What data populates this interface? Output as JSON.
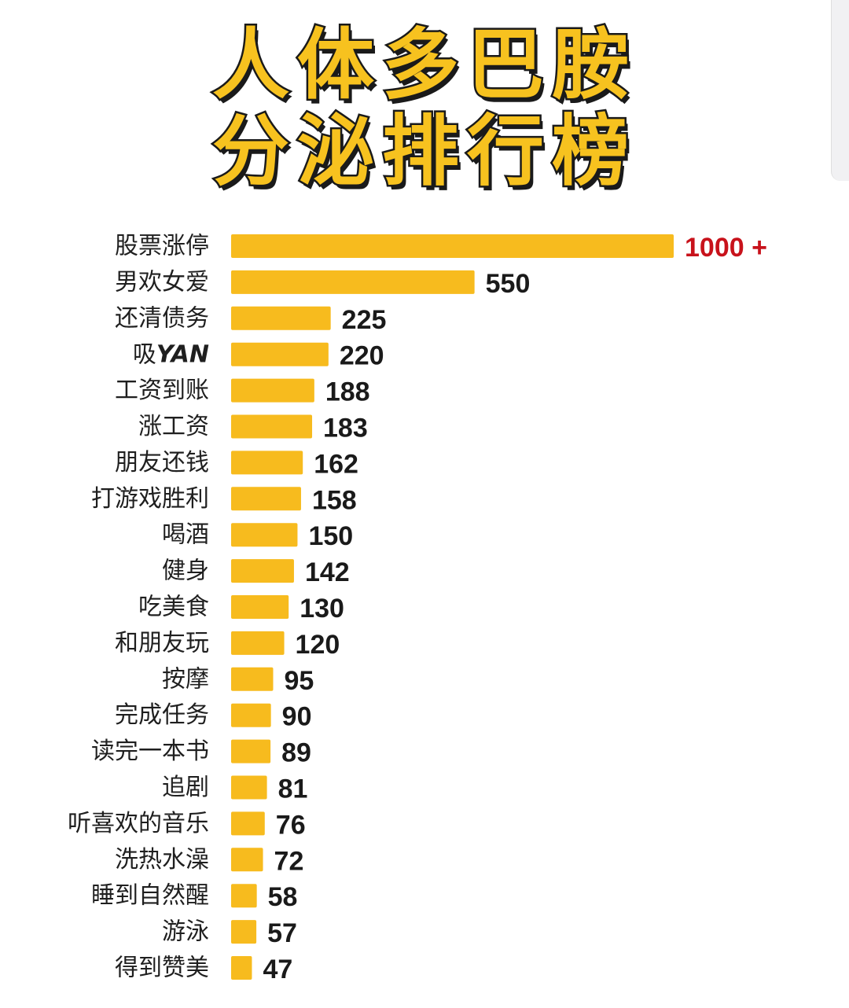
{
  "title": {
    "line1": "人体多巴胺",
    "line2": "分泌排行榜"
  },
  "colors": {
    "bar": "#f7bb1e",
    "title_fill": "#f7c21f",
    "title_outline": "#1a1a1a",
    "value_text": "#1a1a1a",
    "top_value_text": "#c8121b"
  },
  "chart_data": {
    "type": "bar",
    "orientation": "horizontal",
    "title": "人体多巴胺分泌排行榜",
    "categories": [
      "股票涨停",
      "男欢女爱",
      "还清债务",
      "吸YAN",
      "工资到账",
      "涨工资",
      "朋友还钱",
      "打游戏胜利",
      "喝酒",
      "健身",
      "吃美食",
      "和朋友玩",
      "按摩",
      "完成任务",
      "读完一本书",
      "追剧",
      "听喜欢的音乐",
      "洗热水澡",
      "睡到自然醒",
      "游泳",
      "得到赞美"
    ],
    "values": [
      1000,
      550,
      225,
      220,
      188,
      183,
      162,
      158,
      150,
      142,
      130,
      120,
      95,
      90,
      89,
      81,
      76,
      72,
      58,
      57,
      47
    ],
    "value_labels": [
      "1000 +",
      "550",
      "225",
      "220",
      "188",
      "183",
      "162",
      "158",
      "150",
      "142",
      "130",
      "120",
      "95",
      "90",
      "89",
      "81",
      "76",
      "72",
      "58",
      "57",
      "47"
    ],
    "grid": false,
    "legend": "none"
  }
}
